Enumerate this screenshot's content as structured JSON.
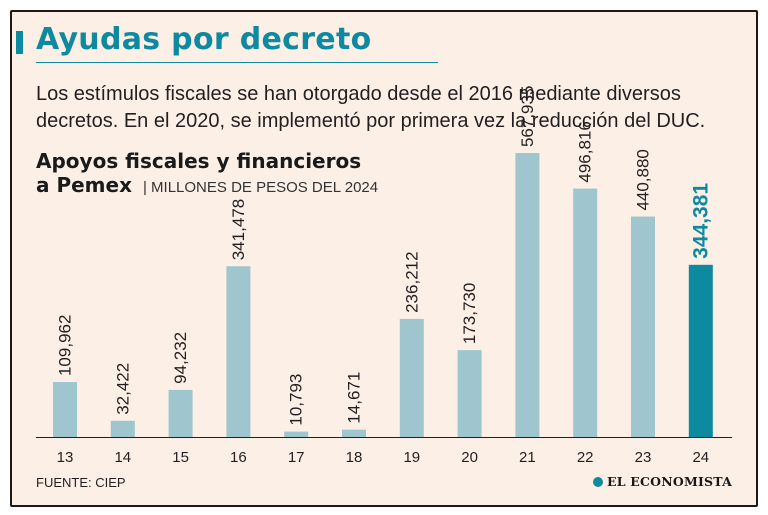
{
  "header": {
    "title": "Ayudas por decreto",
    "subtitle": "Los estímulos fiscales se han otorgado desde el 2016 mediante diversos decretos. En el 2020, se implementó por primera vez la reducción del DUC."
  },
  "footer": {
    "source": "FUENTE: CIEP",
    "logo_text": "EL ECONOMISTA"
  },
  "colors": {
    "accent": "#0e8aa0",
    "bar": "#9fc5cf",
    "highlight_bar": "#0e8aa0",
    "background": "#fcefe6"
  },
  "chart_data": {
    "type": "bar",
    "title_line1": "Apoyos fiscales y financieros",
    "title_line2": "a Pemex",
    "units": "MILLONES DE PESOS DEL 2024",
    "categories": [
      "13",
      "14",
      "15",
      "16",
      "17",
      "18",
      "19",
      "20",
      "21",
      "22",
      "23",
      "24"
    ],
    "values": [
      109962,
      32422,
      94232,
      341478,
      10793,
      14671,
      236212,
      173730,
      567935,
      496816,
      440880,
      344381
    ],
    "value_labels": [
      "109,962",
      "32,422",
      "94,232",
      "341,478",
      "10,793",
      "14,671",
      "236,212",
      "173,730",
      "567,935",
      "496,816",
      "440,880",
      "344,381"
    ],
    "highlight_category": "24",
    "ylim": [
      0,
      600000
    ],
    "xlabel": "",
    "ylabel": "",
    "grid": false,
    "legend": "none"
  }
}
